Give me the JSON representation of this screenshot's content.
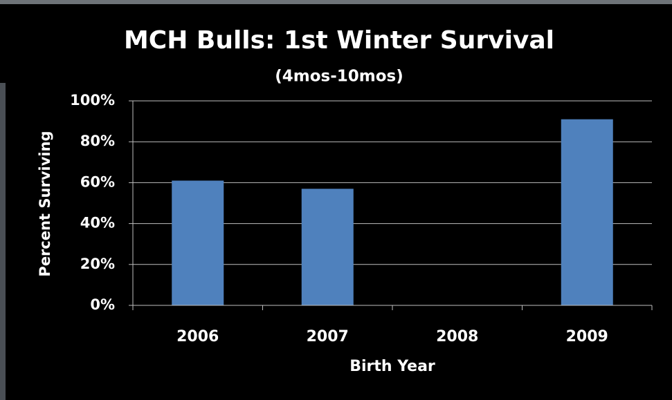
{
  "chart_data": {
    "type": "bar",
    "title": "MCH Bulls: 1st Winter Survival",
    "subtitle": "(4mos-10mos)",
    "x_label": "Birth Year",
    "y_label": "Percent Surviving",
    "categories": [
      "2006",
      "2007",
      "2008",
      "2009"
    ],
    "values": [
      61,
      57,
      null,
      91
    ],
    "color": "#4f81bd",
    "ylim": [
      0,
      100
    ],
    "yticks": [
      {
        "value": 0,
        "label": "0%"
      },
      {
        "value": 20,
        "label": "20%"
      },
      {
        "value": 40,
        "label": "40%"
      },
      {
        "value": 60,
        "label": "60%"
      },
      {
        "value": 80,
        "label": "80%"
      },
      {
        "value": 100,
        "label": "100%"
      }
    ],
    "grid": true
  }
}
